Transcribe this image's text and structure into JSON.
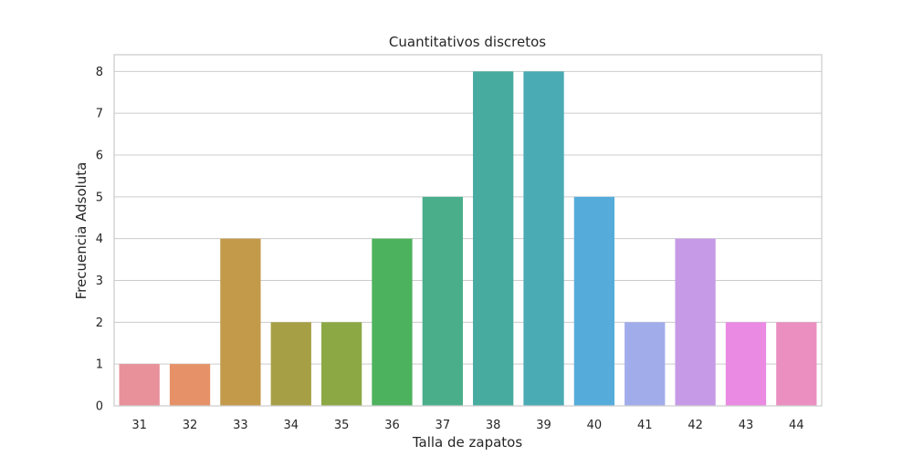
{
  "chart_data": {
    "type": "bar",
    "title": "Cuantitativos discretos",
    "xlabel": "Talla de zapatos",
    "ylabel": "Frecuencia Adsoluta",
    "categories": [
      "31",
      "32",
      "33",
      "34",
      "35",
      "36",
      "37",
      "38",
      "39",
      "40",
      "41",
      "42",
      "43",
      "44"
    ],
    "values": [
      1,
      1,
      4,
      2,
      2,
      4,
      5,
      8,
      8,
      5,
      2,
      4,
      2,
      2
    ],
    "colors": [
      "#e8919b",
      "#e69168",
      "#c39a4a",
      "#a79f46",
      "#8ca845",
      "#4db25e",
      "#4aae8b",
      "#47ab9f",
      "#4aabb4",
      "#55acda",
      "#a1aceb",
      "#c79ae8",
      "#ea8ae3",
      "#ea8fc0"
    ],
    "ylim": [
      0,
      8.4
    ],
    "yticks": [
      0,
      1,
      2,
      3,
      4,
      5,
      6,
      7,
      8
    ],
    "grid": true
  }
}
